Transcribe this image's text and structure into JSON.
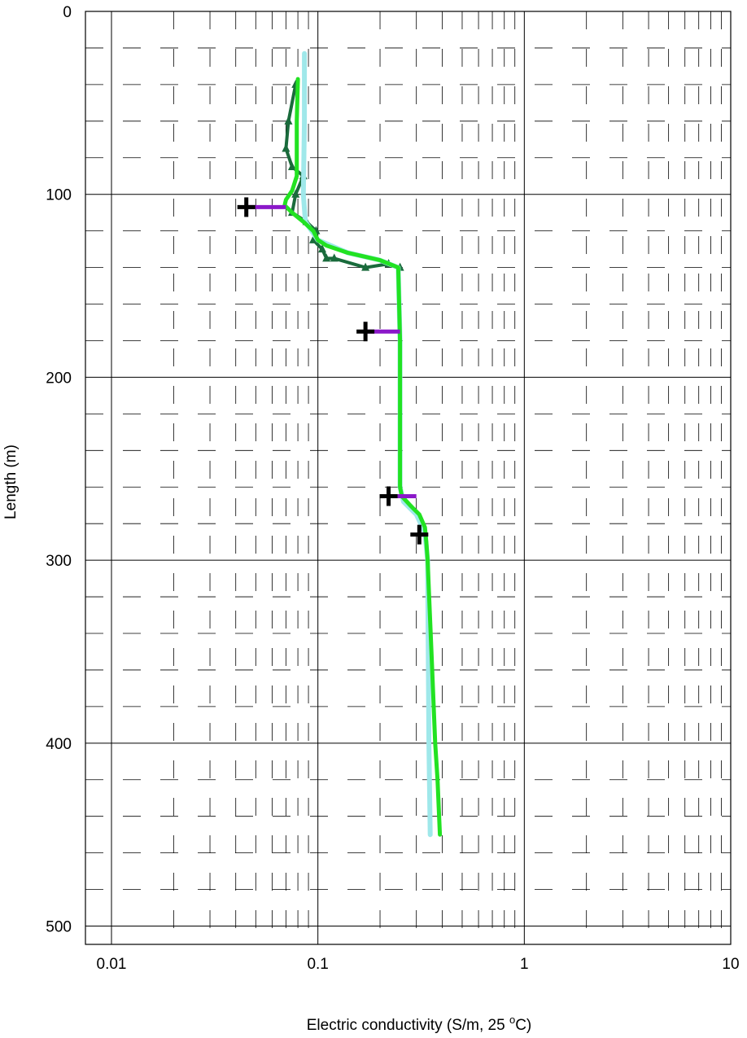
{
  "chart_data": {
    "type": "line",
    "xlabel_main": "Electric conductivity (S/m, 25 ",
    "xlabel_sup": "o",
    "xlabel_end": "C)",
    "ylabel": "Length (m)",
    "x_scale": "log",
    "xlim": [
      0.01,
      10
    ],
    "ylim": [
      0,
      510
    ],
    "y_inverted": true,
    "grid": true,
    "x_ticks": [
      0.01,
      0.1,
      1,
      10
    ],
    "x_tick_labels": [
      "0.01",
      "0.1",
      "1",
      "10"
    ],
    "y_ticks": [
      0,
      100,
      200,
      300,
      400,
      500
    ],
    "y_tick_labels": [
      "0",
      "100",
      "200",
      "300",
      "400",
      "500"
    ],
    "series": [
      {
        "color": "#1a6b3c",
        "style": "triangle-markers",
        "points": [
          [
            0.078,
            40
          ],
          [
            0.072,
            60
          ],
          [
            0.07,
            75
          ],
          [
            0.075,
            85
          ],
          [
            0.085,
            90
          ],
          [
            0.078,
            100
          ],
          [
            0.075,
            110
          ],
          [
            0.088,
            115
          ],
          [
            0.098,
            120
          ],
          [
            0.095,
            125
          ],
          [
            0.105,
            130
          ],
          [
            0.11,
            135
          ],
          [
            0.12,
            135
          ],
          [
            0.17,
            140
          ],
          [
            0.22,
            138
          ],
          [
            0.25,
            140
          ]
        ]
      },
      {
        "color": "#9fe8ea",
        "style": "line",
        "points": [
          [
            0.086,
            23
          ],
          [
            0.086,
            60
          ],
          [
            0.085,
            100
          ],
          [
            0.087,
            115
          ],
          [
            0.1,
            125
          ],
          [
            0.14,
            132
          ],
          [
            0.2,
            136
          ],
          [
            0.245,
            140
          ],
          [
            0.25,
            180
          ],
          [
            0.25,
            260
          ],
          [
            0.26,
            268
          ],
          [
            0.3,
            275
          ],
          [
            0.33,
            285
          ],
          [
            0.34,
            300
          ],
          [
            0.345,
            400
          ],
          [
            0.35,
            450
          ]
        ]
      },
      {
        "color": "#22e222",
        "style": "line",
        "points": [
          [
            0.08,
            37
          ],
          [
            0.079,
            60
          ],
          [
            0.079,
            90
          ],
          [
            0.075,
            98
          ],
          [
            0.07,
            103
          ],
          [
            0.069,
            106
          ],
          [
            0.075,
            110
          ],
          [
            0.085,
            115
          ],
          [
            0.095,
            120
          ],
          [
            0.1,
            125
          ],
          [
            0.11,
            128
          ],
          [
            0.14,
            132
          ],
          [
            0.2,
            136
          ],
          [
            0.245,
            140
          ],
          [
            0.25,
            180
          ],
          [
            0.25,
            260
          ],
          [
            0.255,
            265
          ],
          [
            0.28,
            270
          ],
          [
            0.31,
            275
          ],
          [
            0.33,
            282
          ],
          [
            0.335,
            290
          ],
          [
            0.34,
            300
          ],
          [
            0.355,
            350
          ],
          [
            0.37,
            400
          ],
          [
            0.38,
            420
          ],
          [
            0.39,
            450
          ]
        ]
      }
    ],
    "segments": [
      {
        "y": 107,
        "x_start": 0.045,
        "x_end": 0.07,
        "color": "#8b18c9",
        "marker": "cross"
      },
      {
        "y": 175,
        "x_start": 0.17,
        "x_end": 0.25,
        "color": "#8b18c9",
        "marker": "cross"
      },
      {
        "y": 265,
        "x_start": 0.22,
        "x_end": 0.3,
        "color": "#8b18c9",
        "marker": "cross"
      },
      {
        "y": 286,
        "x_start": 0.31,
        "x_end": 0.33,
        "color": "#8b18c9",
        "marker": "cross"
      }
    ]
  }
}
